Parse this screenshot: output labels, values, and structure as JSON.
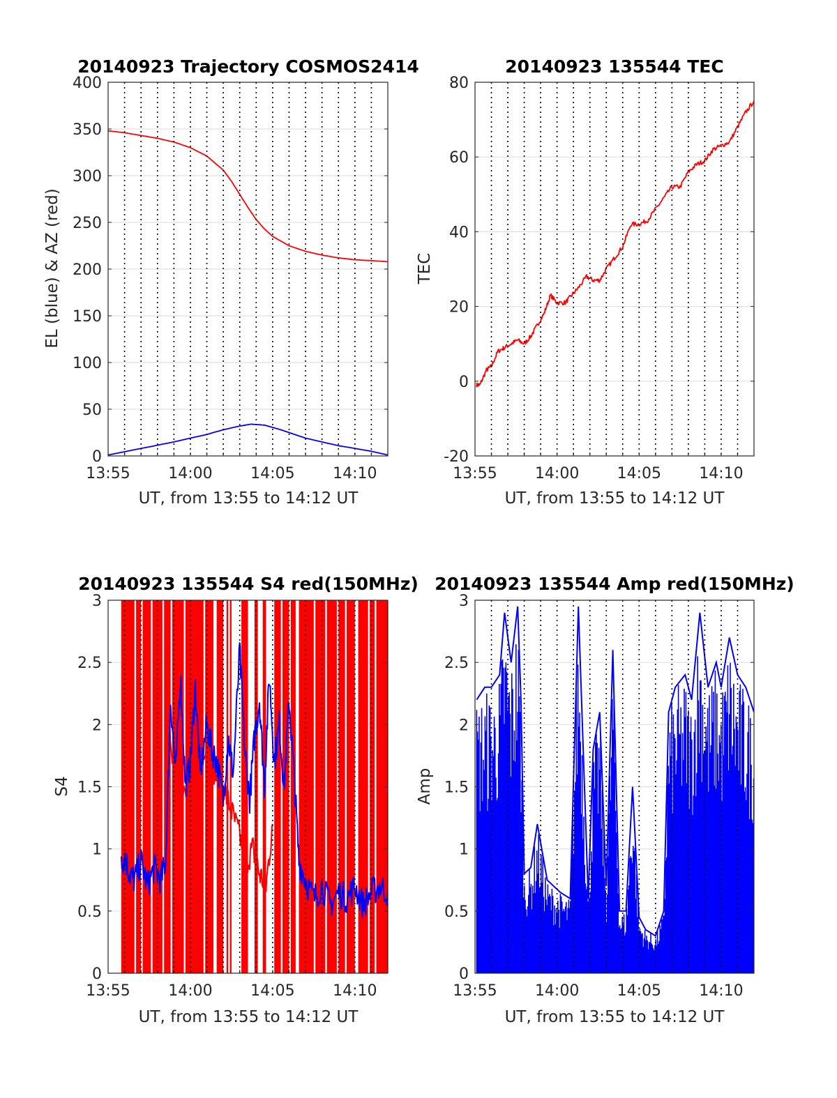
{
  "colors": {
    "red": "#ff0000",
    "blue": "#0000ff",
    "grid": "#e0e0e0",
    "axis": "#262626"
  },
  "chart_data": [
    {
      "id": "traj",
      "type": "line",
      "title": "20140923 Trajectory COSMOS2414",
      "xlabel": "UT, from 13:55 to 14:12 UT",
      "ylabel": "EL (blue) & AZ (red)",
      "xlim": [
        0,
        17
      ],
      "ylim": [
        0,
        400
      ],
      "xtick_values": [
        0,
        5,
        10,
        15
      ],
      "xtick_labels": [
        "13:55",
        "14:00",
        "14:05",
        "14:10"
      ],
      "yticks": [
        "0",
        "50",
        "100",
        "150",
        "200",
        "250",
        "300",
        "350",
        "400"
      ],
      "grid": true,
      "x_unit": "minutes after 13:55 UT",
      "series": [
        {
          "color": "red",
          "style": "line",
          "x": [
            0,
            1,
            2,
            3,
            4,
            5,
            6,
            7,
            7.5,
            8,
            8.5,
            9,
            9.5,
            10,
            11,
            12,
            13,
            14,
            15,
            16,
            17
          ],
          "values": [
            348,
            346,
            343,
            340,
            336,
            330,
            321,
            306,
            294,
            280,
            266,
            253,
            243,
            235,
            225,
            219,
            215,
            212,
            210,
            209,
            208
          ]
        },
        {
          "color": "blue",
          "style": "line",
          "x": [
            0,
            2,
            4,
            6,
            7,
            8,
            8.7,
            9.5,
            10.5,
            12,
            14,
            16,
            17
          ],
          "values": [
            1,
            8,
            15,
            23,
            28,
            32,
            34,
            33,
            28,
            19,
            11,
            5,
            1
          ]
        }
      ]
    },
    {
      "id": "tec",
      "type": "line",
      "title": "20140923 135544 TEC",
      "xlabel": "UT, from 13:55 to 14:12 UT",
      "ylabel": "TEC",
      "xlim": [
        0,
        17
      ],
      "ylim": [
        -20,
        80
      ],
      "xtick_values": [
        0,
        5,
        10,
        15
      ],
      "xtick_labels": [
        "13:55",
        "14:00",
        "14:05",
        "14:10"
      ],
      "yticks": [
        "-20",
        "0",
        "20",
        "40",
        "60",
        "80"
      ],
      "grid": true,
      "x_unit": "minutes after 13:55 UT",
      "series": [
        {
          "color": "red",
          "style": "line",
          "x": [
            0.1,
            0.3,
            0.7,
            1.0,
            1.4,
            1.8,
            2.2,
            2.6,
            3.0,
            3.4,
            3.8,
            4.2,
            4.6,
            5.0,
            5.5,
            5.9,
            6.3,
            6.8,
            7.2,
            7.6,
            8.0,
            8.5,
            9.0,
            9.5,
            10.0,
            10.5,
            11.0,
            11.5,
            12.0,
            12.5,
            13.0,
            13.5,
            14.0,
            14.5,
            15.0,
            15.5,
            16.0,
            16.5,
            17.0
          ],
          "values": [
            -1,
            -1,
            3,
            4,
            8,
            9,
            10,
            11,
            10,
            12,
            15,
            18,
            23,
            21,
            21,
            23,
            25,
            28,
            27,
            27,
            30,
            33,
            36,
            42,
            42,
            43,
            46,
            49,
            52,
            52,
            56,
            58,
            59,
            62,
            63,
            64,
            68,
            72,
            75
          ]
        }
      ]
    },
    {
      "id": "s4",
      "type": "line",
      "title": "20140923 135544 S4 red(150MHz)",
      "xlabel": "UT, from 13:55 to 14:12 UT",
      "ylabel": "S4",
      "xlim": [
        0,
        17
      ],
      "ylim": [
        0,
        3
      ],
      "xtick_values": [
        0,
        5,
        10,
        15
      ],
      "xtick_labels": [
        "13:55",
        "14:00",
        "14:05",
        "14:10"
      ],
      "yticks": [
        "0",
        "0.5",
        "1",
        "1.5",
        "2",
        "2.5",
        "3"
      ],
      "grid": true,
      "x_unit": "minutes after 13:55 UT",
      "series": [
        {
          "color": "red",
          "style": "band-and-line",
          "note_band": "red fills 0 to 3 over these x intervals",
          "bands": [
            [
              0.8,
              1.6
            ],
            [
              1.7,
              2.0
            ],
            [
              2.1,
              2.6
            ],
            [
              2.7,
              3.3
            ],
            [
              3.4,
              3.8
            ],
            [
              3.9,
              4.6
            ],
            [
              4.7,
              5.8
            ],
            [
              5.9,
              6.4
            ],
            [
              6.6,
              7.0
            ],
            [
              7.2,
              7.3
            ],
            [
              7.4,
              7.5
            ],
            [
              8.1,
              8.5
            ],
            [
              8.9,
              9.1
            ],
            [
              9.4,
              9.6
            ],
            [
              10.1,
              10.5
            ],
            [
              10.6,
              11.0
            ],
            [
              11.1,
              11.4
            ],
            [
              11.6,
              12.5
            ],
            [
              12.6,
              13.2
            ],
            [
              13.3,
              13.9
            ],
            [
              14.0,
              14.4
            ],
            [
              14.5,
              15.0
            ],
            [
              15.2,
              15.8
            ],
            [
              15.9,
              16.2
            ],
            [
              16.3,
              17.0
            ]
          ],
          "x": [
            3.6,
            4.2,
            4.8,
            5.4,
            6.0,
            6.5,
            7.0,
            7.5,
            8.0,
            8.4,
            8.8,
            9.2,
            9.6,
            10.0
          ],
          "values": [
            2.1,
            1.5,
            1.4,
            1.6,
            1.9,
            1.6,
            1.5,
            1.3,
            1.1,
            0.9,
            1.0,
            0.8,
            0.7,
            1.2
          ]
        },
        {
          "color": "blue",
          "style": "line",
          "x": [
            0.8,
            1.0,
            1.3,
            1.6,
            2.0,
            2.4,
            2.8,
            3.2,
            3.5,
            3.8,
            4.1,
            4.4,
            4.7,
            5.0,
            5.3,
            5.6,
            6.0,
            6.3,
            6.6,
            7.0,
            7.3,
            7.6,
            8.0,
            8.3,
            8.6,
            8.9,
            9.2,
            9.5,
            9.8,
            10.1,
            10.4,
            10.7,
            11.0,
            11.3,
            11.6,
            12.0,
            12.5,
            13.0,
            13.5,
            14.0,
            14.5,
            15.0,
            15.5,
            16.0,
            16.5,
            17.0
          ],
          "values": [
            0.85,
            0.95,
            0.8,
            0.75,
            0.9,
            0.7,
            0.85,
            0.75,
            0.9,
            2.2,
            1.6,
            2.4,
            1.5,
            1.7,
            2.3,
            1.6,
            2.0,
            1.8,
            1.7,
            1.4,
            1.9,
            1.6,
            2.6,
            1.8,
            1.4,
            1.9,
            2.2,
            1.5,
            2.4,
            1.7,
            2.0,
            1.5,
            2.2,
            1.6,
            0.9,
            0.75,
            0.6,
            0.7,
            0.55,
            0.65,
            0.6,
            0.7,
            0.55,
            0.65,
            0.7,
            0.65
          ]
        }
      ]
    },
    {
      "id": "amp",
      "type": "line",
      "title": "20140923 135544 Amp red(150MHz)",
      "xlabel": "UT, from 13:55 to 14:12 UT",
      "ylabel": "Amp",
      "xlim": [
        0,
        17
      ],
      "ylim": [
        0,
        3
      ],
      "xtick_values": [
        0,
        5,
        10,
        15
      ],
      "xtick_labels": [
        "13:55",
        "14:00",
        "14:05",
        "14:10"
      ],
      "yticks": [
        "0",
        "0.5",
        "1",
        "1.5",
        "2",
        "2.5",
        "3"
      ],
      "grid": true,
      "x_unit": "minutes after 13:55 UT",
      "series": [
        {
          "color": "blue",
          "style": "filled-envelope",
          "x": [
            0.1,
            0.6,
            1.0,
            1.5,
            1.8,
            2.2,
            2.6,
            2.8,
            3.0,
            3.4,
            3.8,
            4.4,
            4.8,
            5.2,
            5.8,
            6.3,
            6.9,
            7.2,
            7.6,
            8.0,
            8.4,
            8.8,
            9.2,
            9.6,
            10.0,
            10.4,
            11.0,
            11.5,
            11.8,
            12.0,
            12.2,
            12.8,
            13.2,
            13.7,
            14.2,
            14.7,
            15.0,
            15.5,
            16.0,
            16.5,
            17.0
          ],
          "values": [
            2.2,
            2.3,
            2.3,
            2.4,
            2.9,
            2.5,
            2.95,
            2.2,
            0.8,
            0.85,
            1.2,
            0.75,
            0.7,
            0.65,
            0.6,
            2.95,
            0.6,
            1.8,
            2.1,
            0.7,
            2.6,
            0.5,
            0.5,
            1.5,
            0.45,
            0.35,
            0.3,
            0.5,
            2.1,
            2.2,
            2.3,
            2.4,
            2.2,
            2.9,
            2.3,
            2.5,
            2.3,
            2.7,
            2.4,
            2.3,
            2.1
          ]
        }
      ]
    }
  ]
}
